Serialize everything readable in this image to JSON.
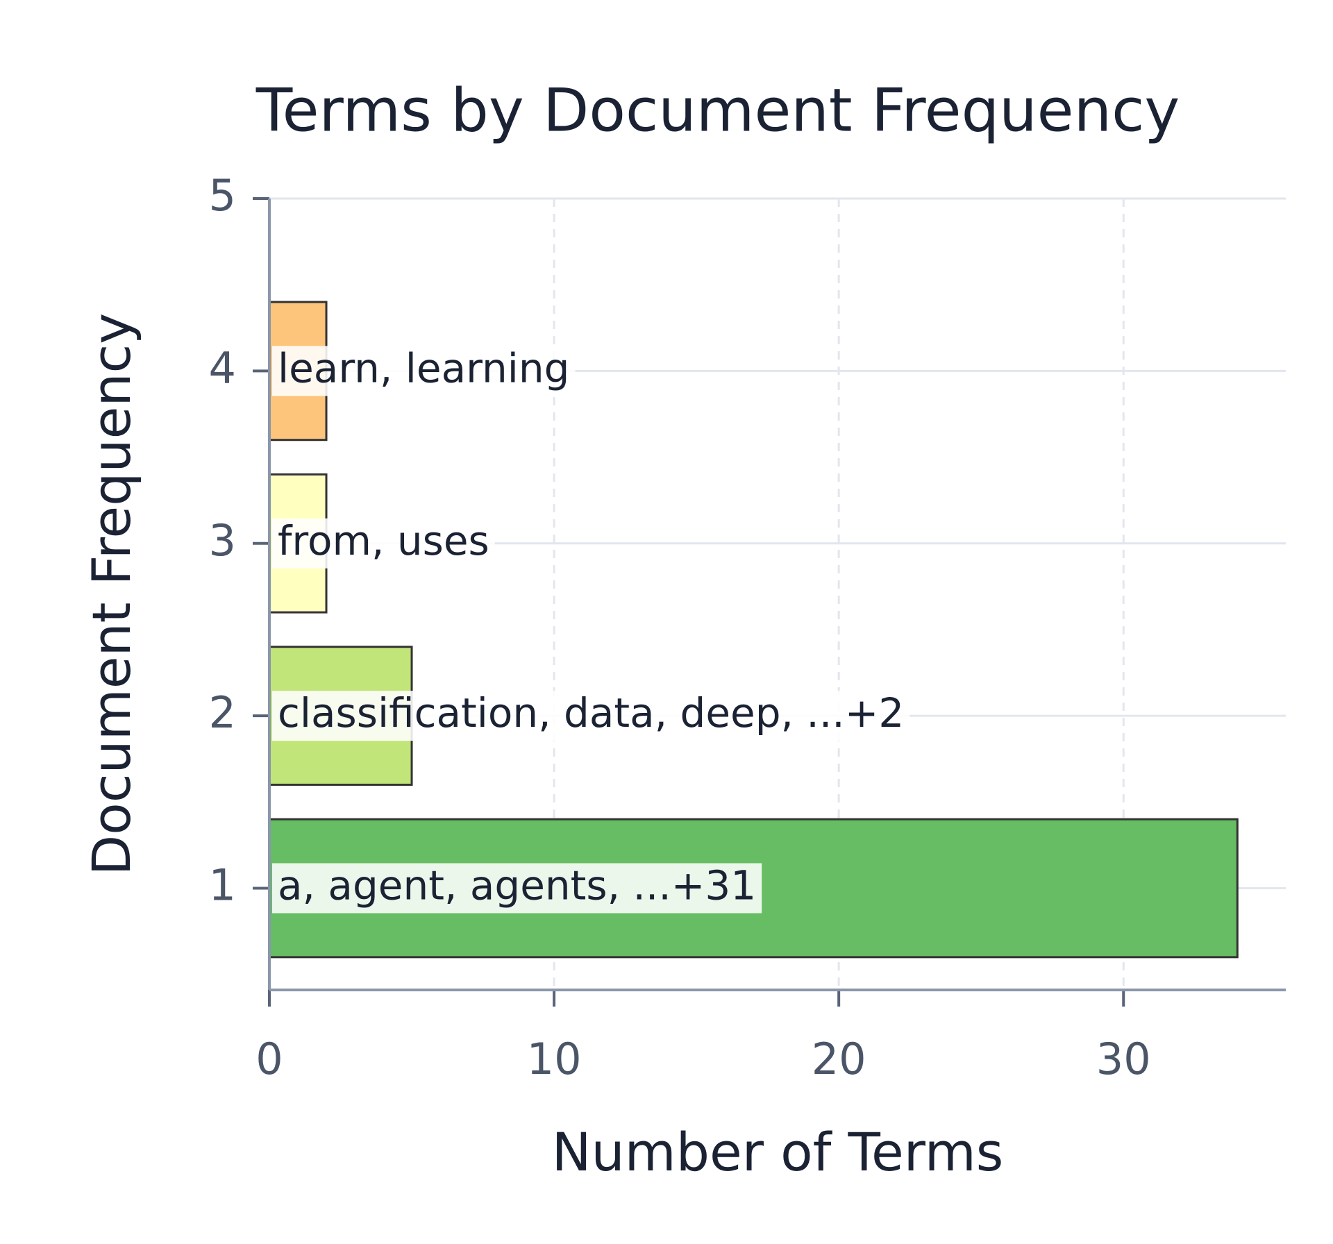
{
  "chart_data": {
    "type": "barh",
    "title": "Terms by Document Frequency",
    "x_label": "Number of Terms",
    "y_label": "Document Frequency",
    "y": [
      1,
      2,
      3,
      4
    ],
    "values": [
      34,
      5,
      2,
      2
    ],
    "labels": [
      "a, agent, agents, ...+31",
      "classification, data, deep, ...+2",
      "from, uses",
      "learn, learning"
    ],
    "colors": [
      "#66bd63",
      "#c2e57a",
      "#ffffc0",
      "#fdc47b"
    ],
    "xlim": [
      0,
      35.7
    ],
    "xticks": [
      0,
      10,
      20,
      30
    ],
    "ylim": [
      0.41,
      5
    ],
    "yticks": [
      1,
      2,
      3,
      4,
      5
    ],
    "grid": true
  }
}
